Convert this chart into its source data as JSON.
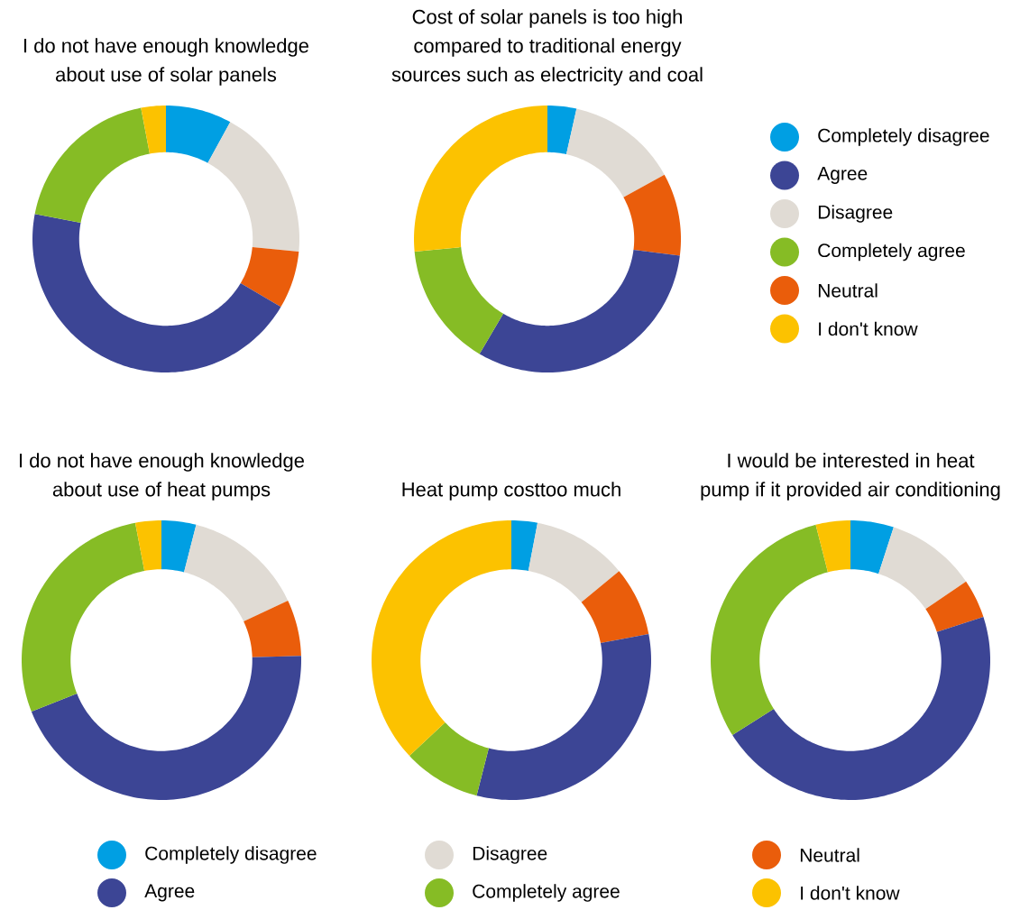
{
  "chart_data": [
    {
      "type": "donut",
      "title": "I do not have enough knowledge about use of solar panels",
      "categories": [
        null,
        null,
        null,
        null,
        null,
        null
      ],
      "values": [
        8,
        18.5,
        7,
        44.5,
        19,
        3
      ],
      "colors": [
        "#009fe3",
        "#e0dbd4",
        "#ea5d0b",
        "#3c4595",
        "#86bc25",
        "#fcc200"
      ]
    },
    {
      "type": "donut",
      "title": "Cost of solar panels is too high compared to traditional energy sources such as electricity and coal",
      "categories": [
        "Completely disagree",
        "Disagree",
        "Neutral",
        "Agree",
        "Completely agree",
        "I don't know"
      ],
      "values": [
        3.5,
        13.5,
        10,
        31.5,
        15,
        26.5
      ],
      "colors": [
        "#009fe3",
        "#e0dbd4",
        "#ea5d0b",
        "#3c4595",
        "#86bc25",
        "#fcc200"
      ],
      "legend": "right"
    },
    {
      "type": "donut",
      "title": "I do not have enough knowledge about use of heat pumps",
      "categories": [
        null,
        null,
        null,
        null,
        null,
        null
      ],
      "values": [
        4,
        14,
        6.5,
        44.5,
        28,
        3
      ],
      "colors": [
        "#009fe3",
        "#e0dbd4",
        "#ea5d0b",
        "#3c4595",
        "#86bc25",
        "#fcc200"
      ]
    },
    {
      "type": "donut",
      "title": "Heat pump costtoo much",
      "categories": [
        "Completely disagree",
        "Disagree",
        "Neutral",
        "Agree",
        "Completely agree",
        "I don't know"
      ],
      "values": [
        3,
        11,
        8,
        32,
        9,
        37
      ],
      "colors": [
        "#009fe3",
        "#e0dbd4",
        "#ea5d0b",
        "#3c4595",
        "#86bc25",
        "#fcc200"
      ],
      "legend": "bottom"
    },
    {
      "type": "donut",
      "title": "I would be interested in heat pump if it provided air conditioning",
      "categories": [
        null,
        null,
        null,
        null,
        null,
        null
      ],
      "values": [
        5,
        10.5,
        4.5,
        46,
        30,
        4
      ],
      "colors": [
        "#009fe3",
        "#e0dbd4",
        "#ea5d0b",
        "#3c4595",
        "#86bc25",
        "#fcc200"
      ]
    }
  ]
}
